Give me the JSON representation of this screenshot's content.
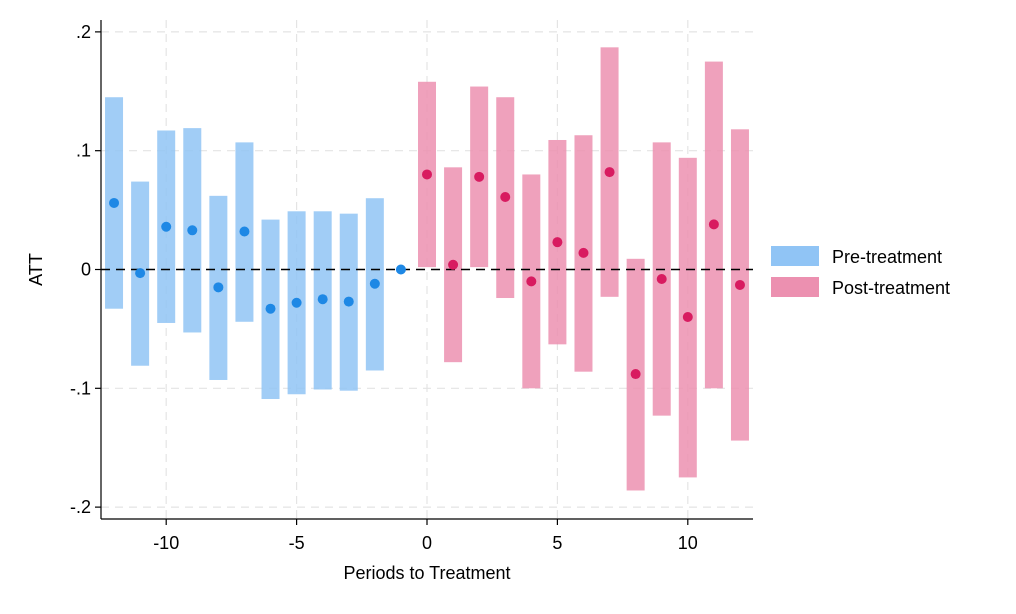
{
  "chart_data": {
    "type": "scatter",
    "title": "",
    "xlabel": "Periods to Treatment",
    "ylabel": "ATT",
    "xlim": [
      -12.5,
      12.5
    ],
    "ylim": [
      -0.21,
      0.21
    ],
    "x_ticks": [
      -10,
      -5,
      0,
      5,
      10
    ],
    "x_tick_labels": [
      "-10",
      "-5",
      "0",
      "5",
      "10"
    ],
    "y_ticks": [
      0.2,
      0.1,
      0,
      -0.1,
      -0.2
    ],
    "y_tick_labels": [
      ".2",
      ".1",
      "0",
      "-.1",
      "-.2"
    ],
    "grid": true,
    "reference_line_y": 0,
    "legend_position": "right",
    "series": [
      {
        "name": "Pre-treatment",
        "color": "#1e88e5",
        "band_color": "#90c4f5",
        "points": [
          {
            "x": -12,
            "y": 0.056,
            "lo": -0.033,
            "hi": 0.145
          },
          {
            "x": -11,
            "y": -0.003,
            "lo": -0.081,
            "hi": 0.074
          },
          {
            "x": -10,
            "y": 0.036,
            "lo": -0.045,
            "hi": 0.117
          },
          {
            "x": -9,
            "y": 0.033,
            "lo": -0.053,
            "hi": 0.119
          },
          {
            "x": -8,
            "y": -0.015,
            "lo": -0.093,
            "hi": 0.062
          },
          {
            "x": -7,
            "y": 0.032,
            "lo": -0.044,
            "hi": 0.107
          },
          {
            "x": -6,
            "y": -0.033,
            "lo": -0.109,
            "hi": 0.042
          },
          {
            "x": -5,
            "y": -0.028,
            "lo": -0.105,
            "hi": 0.049
          },
          {
            "x": -4,
            "y": -0.025,
            "lo": -0.101,
            "hi": 0.049
          },
          {
            "x": -3,
            "y": -0.027,
            "lo": -0.102,
            "hi": 0.047
          },
          {
            "x": -2,
            "y": -0.012,
            "lo": -0.085,
            "hi": 0.06
          },
          {
            "x": -1,
            "y": 0.0,
            "lo": 0.0,
            "hi": 0.0
          }
        ]
      },
      {
        "name": "Post-treatment",
        "color": "#d81b60",
        "band_color": "#ec90b0",
        "points": [
          {
            "x": 0,
            "y": 0.08,
            "lo": 0.002,
            "hi": 0.158
          },
          {
            "x": 1,
            "y": 0.004,
            "lo": -0.078,
            "hi": 0.086
          },
          {
            "x": 2,
            "y": 0.078,
            "lo": 0.002,
            "hi": 0.154
          },
          {
            "x": 3,
            "y": 0.061,
            "lo": -0.024,
            "hi": 0.145
          },
          {
            "x": 4,
            "y": -0.01,
            "lo": -0.1,
            "hi": 0.08
          },
          {
            "x": 5,
            "y": 0.023,
            "lo": -0.063,
            "hi": 0.109
          },
          {
            "x": 6,
            "y": 0.014,
            "lo": -0.086,
            "hi": 0.113
          },
          {
            "x": 7,
            "y": 0.082,
            "lo": -0.023,
            "hi": 0.187
          },
          {
            "x": 8,
            "y": -0.088,
            "lo": -0.186,
            "hi": 0.009
          },
          {
            "x": 9,
            "y": -0.008,
            "lo": -0.123,
            "hi": 0.107
          },
          {
            "x": 10,
            "y": -0.04,
            "lo": -0.175,
            "hi": 0.094
          },
          {
            "x": 11,
            "y": 0.038,
            "lo": -0.1,
            "hi": 0.175
          },
          {
            "x": 12,
            "y": -0.013,
            "lo": -0.144,
            "hi": 0.118
          }
        ]
      }
    ]
  }
}
